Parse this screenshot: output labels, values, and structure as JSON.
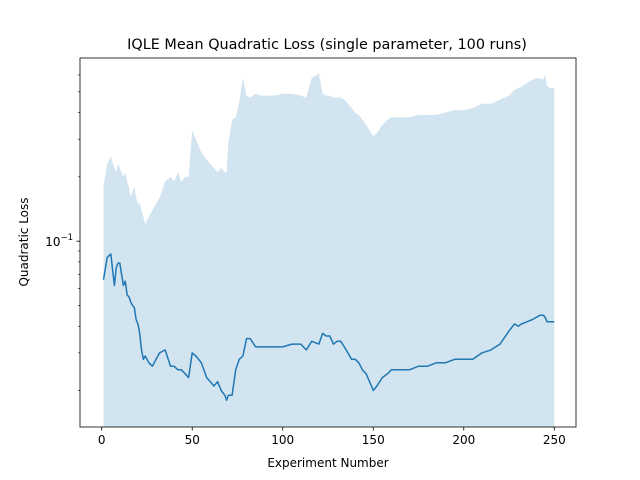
{
  "chart_data": {
    "type": "line",
    "title": "IQLE Mean Quadratic Loss (single parameter, 100 runs)",
    "xlabel": "Experiment Number",
    "ylabel": "Quadratic Loss",
    "yscale": "log",
    "xlim": [
      -12,
      262
    ],
    "ylim": [
      0.0135,
      0.72
    ],
    "x_ticks": [
      0,
      50,
      100,
      150,
      200,
      250
    ],
    "y_major_ticks": [
      {
        "value": 0.1,
        "base": "10",
        "exponent": "−1"
      }
    ],
    "y_minor_ticks": [
      0.02,
      0.03,
      0.04,
      0.05,
      0.06,
      0.07,
      0.08,
      0.09,
      0.2,
      0.3,
      0.4,
      0.5,
      0.6
    ],
    "grid": false,
    "colors": {
      "line": "#1f77b4",
      "band": "#1f77b4",
      "band_opacity": 0.2
    },
    "series": [
      {
        "x": [
          1,
          3,
          5,
          7,
          8,
          9,
          10,
          12,
          13,
          14,
          15,
          16,
          17,
          18,
          19,
          20,
          21,
          22,
          23,
          24,
          26,
          28,
          30,
          32,
          35,
          38,
          40,
          42,
          44,
          46,
          48,
          50,
          52,
          55,
          58,
          60,
          62,
          64,
          66,
          68,
          69,
          70,
          72,
          74,
          76,
          78,
          80,
          82,
          85,
          88,
          90,
          95,
          100,
          105,
          110,
          113,
          116,
          120,
          122,
          124,
          126,
          128,
          130,
          132,
          134,
          136,
          138,
          140,
          142,
          144,
          146,
          148,
          150,
          152,
          155,
          158,
          160,
          165,
          170,
          175,
          180,
          185,
          190,
          195,
          200,
          205,
          210,
          215,
          220,
          225,
          228,
          230,
          232,
          235,
          238,
          240,
          242,
          244,
          245,
          246,
          248,
          250
        ],
        "y": [
          0.066,
          0.084,
          0.087,
          0.062,
          0.075,
          0.079,
          0.079,
          0.062,
          0.065,
          0.056,
          0.055,
          0.052,
          0.05,
          0.049,
          0.043,
          0.041,
          0.037,
          0.031,
          0.028,
          0.029,
          0.027,
          0.026,
          0.028,
          0.03,
          0.031,
          0.026,
          0.026,
          0.025,
          0.025,
          0.024,
          0.023,
          0.03,
          0.029,
          0.027,
          0.023,
          0.022,
          0.021,
          0.022,
          0.02,
          0.019,
          0.018,
          0.019,
          0.019,
          0.025,
          0.028,
          0.029,
          0.035,
          0.035,
          0.032,
          0.032,
          0.032,
          0.032,
          0.032,
          0.033,
          0.033,
          0.031,
          0.034,
          0.033,
          0.037,
          0.036,
          0.036,
          0.033,
          0.034,
          0.034,
          0.032,
          0.03,
          0.028,
          0.028,
          0.027,
          0.025,
          0.024,
          0.022,
          0.02,
          0.021,
          0.023,
          0.024,
          0.025,
          0.025,
          0.025,
          0.026,
          0.026,
          0.027,
          0.027,
          0.028,
          0.028,
          0.028,
          0.03,
          0.031,
          0.033,
          0.038,
          0.041,
          0.04,
          0.041,
          0.042,
          0.043,
          0.044,
          0.045,
          0.045,
          0.044,
          0.042,
          0.042,
          0.042
        ]
      }
    ],
    "band": {
      "x": [
        1,
        3,
        5,
        7,
        8,
        9,
        10,
        12,
        13,
        14,
        15,
        16,
        17,
        18,
        19,
        20,
        21,
        22,
        23,
        24,
        26,
        28,
        30,
        32,
        35,
        38,
        40,
        42,
        44,
        46,
        48,
        50,
        52,
        55,
        58,
        60,
        62,
        64,
        66,
        68,
        69,
        70,
        72,
        74,
        76,
        78,
        80,
        82,
        85,
        88,
        90,
        95,
        100,
        105,
        110,
        113,
        116,
        120,
        122,
        124,
        126,
        128,
        130,
        132,
        134,
        136,
        138,
        140,
        142,
        144,
        146,
        148,
        150,
        152,
        155,
        158,
        160,
        165,
        170,
        175,
        180,
        185,
        190,
        195,
        200,
        205,
        210,
        215,
        220,
        225,
        228,
        230,
        232,
        235,
        238,
        240,
        242,
        244,
        245,
        246,
        248,
        250
      ],
      "upper": [
        0.18,
        0.23,
        0.25,
        0.22,
        0.21,
        0.23,
        0.22,
        0.2,
        0.21,
        0.19,
        0.18,
        0.16,
        0.17,
        0.18,
        0.16,
        0.15,
        0.15,
        0.14,
        0.13,
        0.12,
        0.13,
        0.14,
        0.15,
        0.16,
        0.19,
        0.2,
        0.19,
        0.21,
        0.19,
        0.2,
        0.2,
        0.33,
        0.3,
        0.26,
        0.24,
        0.23,
        0.22,
        0.21,
        0.22,
        0.21,
        0.21,
        0.29,
        0.37,
        0.38,
        0.45,
        0.58,
        0.48,
        0.47,
        0.49,
        0.48,
        0.48,
        0.48,
        0.49,
        0.49,
        0.48,
        0.47,
        0.58,
        0.61,
        0.49,
        0.48,
        0.48,
        0.47,
        0.47,
        0.47,
        0.46,
        0.44,
        0.42,
        0.4,
        0.39,
        0.37,
        0.35,
        0.33,
        0.31,
        0.32,
        0.35,
        0.37,
        0.38,
        0.38,
        0.38,
        0.39,
        0.39,
        0.39,
        0.4,
        0.41,
        0.41,
        0.42,
        0.44,
        0.44,
        0.46,
        0.48,
        0.51,
        0.52,
        0.53,
        0.55,
        0.57,
        0.58,
        0.58,
        0.57,
        0.6,
        0.53,
        0.52,
        0.52
      ],
      "lower": 0.0135
    }
  }
}
